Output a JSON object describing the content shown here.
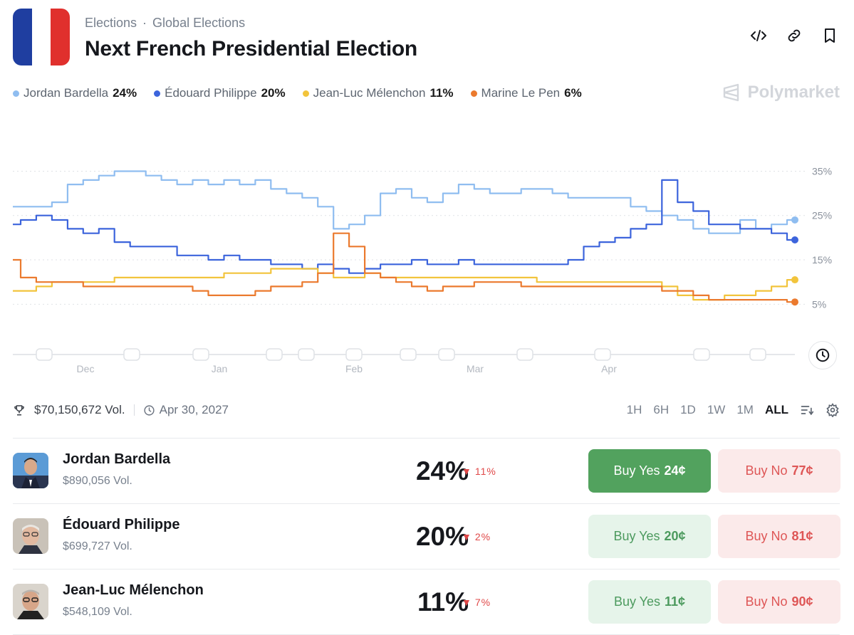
{
  "header": {
    "breadcrumb": [
      "Elections",
      "·",
      "Global Elections"
    ],
    "title": "Next French Presidential Election",
    "brand": "Polymarket",
    "flag_colors": [
      "#1f3ea0",
      "#ffffff",
      "#e0302d"
    ]
  },
  "legend": [
    {
      "name": "Jordan Bardella",
      "pct": "24%",
      "color": "#8fbdf0"
    },
    {
      "name": "Édouard Philippe",
      "pct": "20%",
      "color": "#3c64dc"
    },
    {
      "name": "Jean-Luc Mélenchon",
      "pct": "11%",
      "color": "#f2c43c"
    },
    {
      "name": "Marine Le Pen",
      "pct": "6%",
      "color": "#eb7a2e"
    }
  ],
  "stats": {
    "volume": "$70,150,672 Vol.",
    "date": "Apr 30, 2027"
  },
  "ranges": [
    "1H",
    "6H",
    "1D",
    "1W",
    "1M",
    "ALL"
  ],
  "active_range": "ALL",
  "candidates": [
    {
      "name": "Jordan Bardella",
      "volume": "$890,056 Vol.",
      "pct": "24%",
      "change": "11%",
      "yes_label": "Buy Yes",
      "yes_price": "24¢",
      "no_label": "Buy No",
      "no_price": "77¢"
    },
    {
      "name": "Édouard Philippe",
      "volume": "$699,727 Vol.",
      "pct": "20%",
      "change": "2%",
      "yes_label": "Buy Yes",
      "yes_price": "20¢",
      "no_label": "Buy No",
      "no_price": "81¢"
    },
    {
      "name": "Jean-Luc Mélenchon",
      "volume": "$548,109 Vol.",
      "pct": "11%",
      "change": "7%",
      "yes_label": "Buy Yes",
      "yes_price": "11¢",
      "no_label": "Buy No",
      "no_price": "90¢"
    }
  ],
  "chart_data": {
    "type": "line",
    "x_labels": [
      "Dec",
      "Jan",
      "Feb",
      "Mar",
      "Apr"
    ],
    "y_ticks": [
      "35%",
      "25%",
      "15%",
      "5%"
    ],
    "ylim": [
      2,
      37
    ],
    "grid": true,
    "legend_position": "top-left",
    "x": [
      0,
      2,
      4,
      6,
      8,
      10,
      12,
      14,
      16,
      18,
      20,
      22,
      24,
      26,
      28,
      30,
      32,
      34,
      36,
      38,
      40,
      42,
      44,
      46,
      48,
      50,
      52,
      54,
      56,
      58,
      60,
      62,
      64,
      66,
      68,
      70,
      72,
      74,
      76,
      78,
      80,
      82,
      84,
      86,
      88,
      90,
      92,
      94,
      96,
      98,
      100
    ],
    "series": [
      {
        "name": "Jordan Bardella",
        "color": "#8fbdf0",
        "values": [
          27,
          27,
          27,
          28,
          32,
          33,
          34,
          35,
          35,
          34,
          33,
          32,
          33,
          32,
          33,
          32,
          33,
          31,
          30,
          29,
          27,
          22,
          23,
          25,
          30,
          31,
          29,
          28,
          30,
          32,
          31,
          30,
          30,
          31,
          31,
          30,
          29,
          29,
          29,
          29,
          27,
          26,
          25,
          24,
          22,
          21,
          21,
          24,
          22,
          23,
          24
        ]
      },
      {
        "name": "Édouard Philippe",
        "color": "#3c64dc",
        "values": [
          23,
          24,
          25,
          24,
          22,
          21,
          22,
          19,
          18,
          18,
          18,
          16,
          16,
          15,
          16,
          15,
          15,
          14,
          14,
          13,
          14,
          13,
          12,
          13,
          14,
          14,
          15,
          14,
          14,
          15,
          14,
          14,
          14,
          14,
          14,
          14,
          15,
          18,
          19,
          20,
          22,
          23,
          33,
          28,
          26,
          23,
          23,
          22,
          22,
          21,
          19.5
        ]
      },
      {
        "name": "Jean-Luc Mélenchon",
        "color": "#f2c43c",
        "values": [
          8,
          8,
          9,
          10,
          10,
          10,
          10,
          11,
          11,
          11,
          11,
          11,
          11,
          11,
          12,
          12,
          12,
          13,
          13,
          13,
          12,
          11,
          11,
          12,
          11,
          11,
          11,
          11,
          11,
          11,
          11,
          11,
          11,
          11,
          10,
          10,
          10,
          10,
          10,
          10,
          10,
          10,
          9,
          7,
          6,
          6,
          7,
          7,
          8,
          9,
          10.5
        ]
      },
      {
        "name": "Marine Le Pen",
        "color": "#eb7a2e",
        "values": [
          15,
          11,
          10,
          10,
          10,
          9,
          9,
          9,
          9,
          9,
          9,
          9,
          8,
          7,
          7,
          7,
          8,
          9,
          9,
          10,
          12,
          21,
          18,
          12,
          11,
          10,
          9,
          8,
          9,
          9,
          10,
          10,
          10,
          9,
          9,
          9,
          9,
          9,
          9,
          9,
          9,
          9,
          8,
          8,
          7,
          6,
          6,
          6,
          6,
          6,
          5.5
        ]
      }
    ]
  }
}
